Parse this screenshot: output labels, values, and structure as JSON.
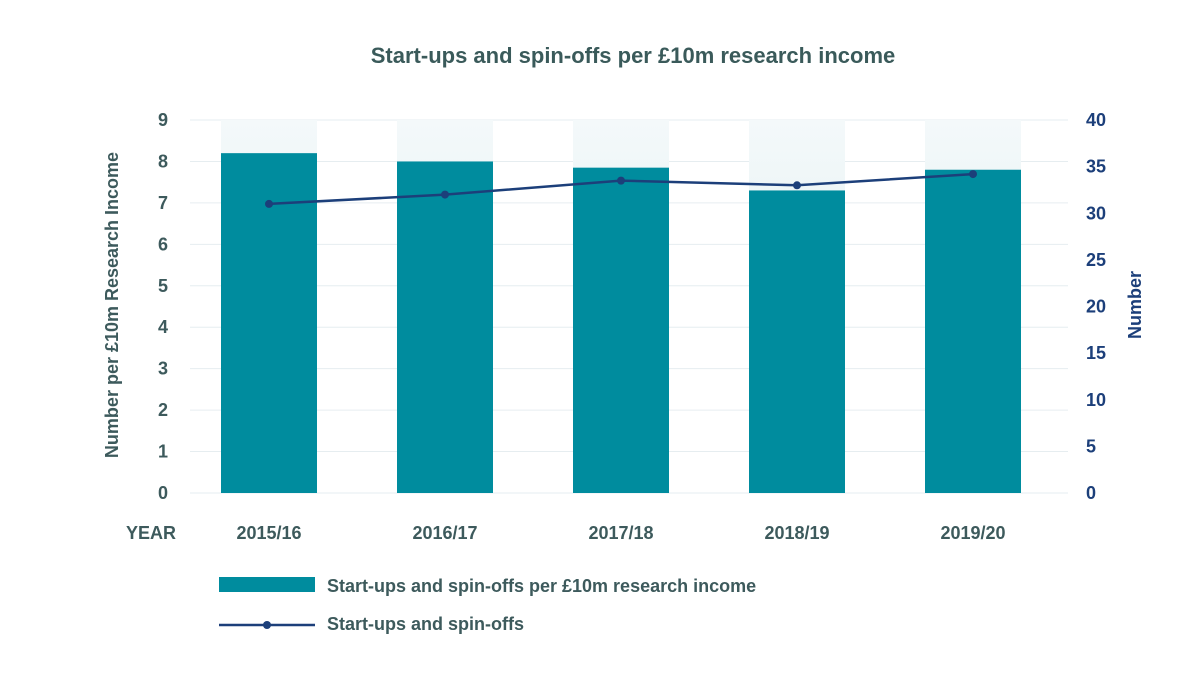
{
  "chart_data": {
    "type": "bar",
    "title": "Start-ups and spin-offs per £10m research income",
    "x_axis_title": "YEAR",
    "categories": [
      "2015/16",
      "2016/17",
      "2017/18",
      "2018/19",
      "2019/20"
    ],
    "y_left": {
      "label": "Number per £10m Research Income",
      "range": [
        0,
        9
      ],
      "ticks": [
        "0",
        "1",
        "2",
        "3",
        "4",
        "5",
        "6",
        "7",
        "8",
        "9"
      ]
    },
    "y_right": {
      "label": "Number",
      "range": [
        0,
        40
      ],
      "ticks": [
        "0",
        "5",
        "10",
        "15",
        "20",
        "25",
        "30",
        "35",
        "40"
      ]
    },
    "grid": true,
    "legend_position": "bottom-left",
    "series": [
      {
        "name": "Start-ups and spin-offs per £10m research income",
        "type": "bar",
        "axis": "left",
        "color": "#008c9e",
        "values": [
          8.2,
          8.0,
          7.85,
          7.3,
          7.8
        ]
      },
      {
        "name": "Start-ups and spin-offs",
        "type": "line",
        "axis": "right",
        "color": "#1c3f7a",
        "values": [
          31,
          32,
          33.5,
          33,
          34.2
        ]
      }
    ]
  }
}
